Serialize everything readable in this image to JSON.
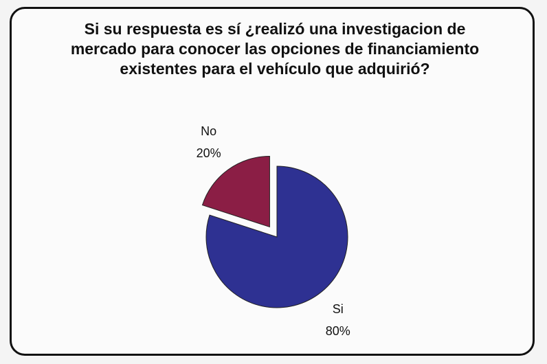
{
  "chart_data": {
    "type": "pie",
    "title": "Si su respuesta es sí  ¿realizó una investigacion de mercado para conocer las opciones de financiamiento existentes para el vehículo que adquirió?",
    "categories": [
      "Si",
      "No"
    ],
    "values": [
      80,
      20
    ],
    "value_labels": [
      "80%",
      "20%"
    ],
    "colors": [
      "#2e3192",
      "#8b1e45"
    ]
  }
}
